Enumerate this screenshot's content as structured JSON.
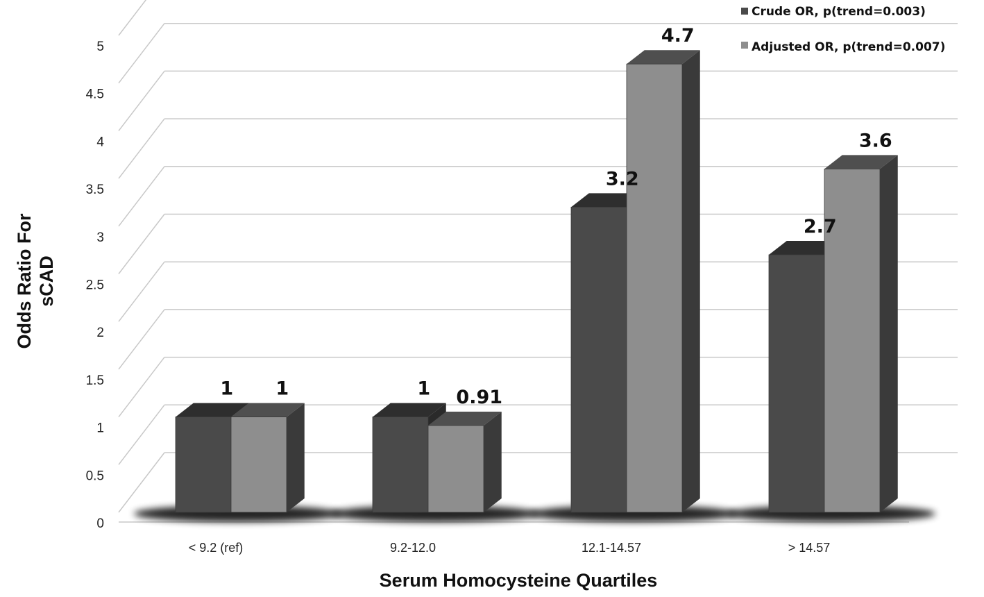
{
  "chart_data": {
    "type": "bar",
    "xlabel": "Serum Homocysteine Quartiles",
    "ylabel_lines": [
      "Odds Ratio For",
      "sCAD"
    ],
    "categories": [
      "< 9.2 (ref)",
      "9.2-12.0",
      "12.1-14.57",
      "> 14.57"
    ],
    "series": [
      {
        "name": "Crude OR, p(trend=0.003)",
        "values": [
          1,
          1,
          3.2,
          2.7
        ],
        "labels": [
          "1",
          "1",
          "3.2",
          "2.7"
        ],
        "color": "#4a4a4a"
      },
      {
        "name": "Adjusted OR, p(trend=0.007)",
        "values": [
          1,
          0.91,
          4.7,
          3.6
        ],
        "labels": [
          "1",
          "0.91",
          "4.7",
          "3.6"
        ],
        "color": "#8e8e8e"
      }
    ],
    "yticks": [
      "0",
      "0.5",
      "1",
      "1.5",
      "2",
      "2.5",
      "3",
      "3.5",
      "4",
      "4.5",
      "5"
    ],
    "ylim": [
      0,
      5
    ],
    "grid": true,
    "legend_position": "top-right",
    "style": "3d-clustered-column"
  }
}
